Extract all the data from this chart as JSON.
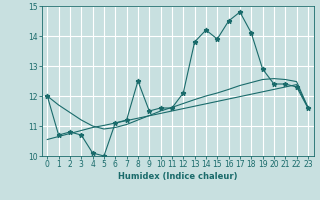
{
  "xlabel": "Humidex (Indice chaleur)",
  "xlim": [
    -0.5,
    23.5
  ],
  "ylim": [
    10,
    15
  ],
  "yticks": [
    10,
    11,
    12,
    13,
    14,
    15
  ],
  "xticks": [
    0,
    1,
    2,
    3,
    4,
    5,
    6,
    7,
    8,
    9,
    10,
    11,
    12,
    13,
    14,
    15,
    16,
    17,
    18,
    19,
    20,
    21,
    22,
    23
  ],
  "bg_color": "#c8e0e0",
  "grid_color": "#ffffff",
  "line_color": "#1a6b6b",
  "main_y": [
    12.0,
    10.7,
    10.8,
    10.7,
    10.1,
    10.0,
    11.1,
    11.2,
    12.5,
    11.5,
    11.6,
    11.6,
    12.1,
    13.8,
    14.2,
    13.9,
    14.5,
    14.8,
    14.1,
    12.9,
    12.4,
    12.4,
    12.3,
    11.6
  ],
  "trend1_y": [
    10.55,
    10.65,
    10.75,
    10.85,
    10.95,
    11.02,
    11.1,
    11.18,
    11.26,
    11.34,
    11.42,
    11.5,
    11.58,
    11.66,
    11.74,
    11.82,
    11.9,
    11.98,
    12.06,
    12.14,
    12.22,
    12.3,
    12.38,
    11.62
  ],
  "trend2_y": [
    12.0,
    11.7,
    11.45,
    11.2,
    11.0,
    10.9,
    10.95,
    11.05,
    11.2,
    11.35,
    11.5,
    11.62,
    11.75,
    11.88,
    12.0,
    12.1,
    12.22,
    12.35,
    12.45,
    12.55,
    12.58,
    12.55,
    12.48,
    11.62
  ]
}
